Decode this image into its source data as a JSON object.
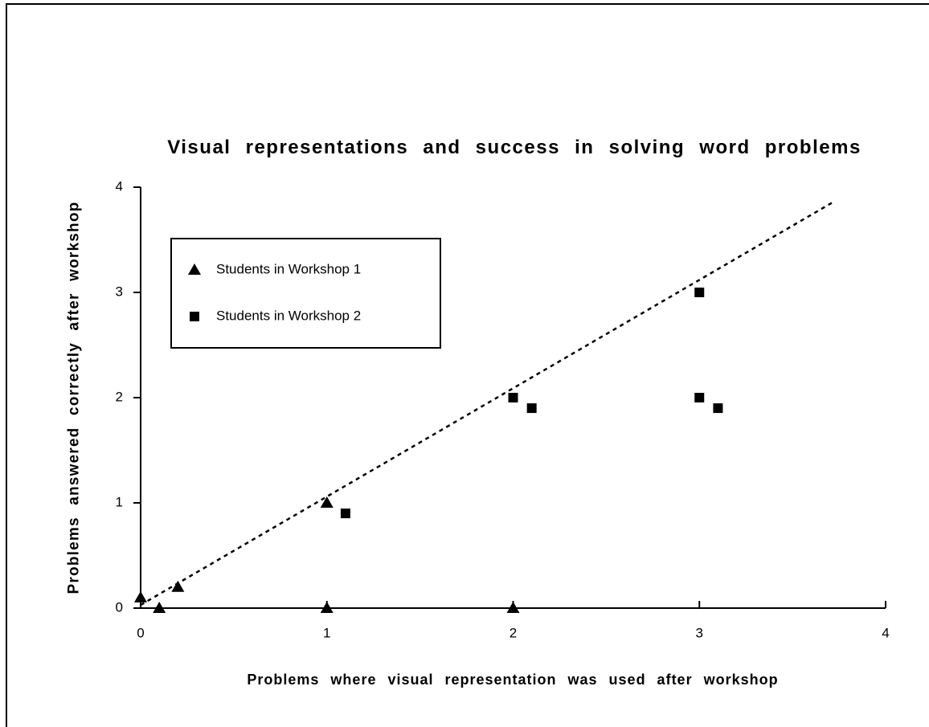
{
  "chart_data": {
    "type": "scatter",
    "title": "Visual representations and success in solving word problems",
    "x_label": "Problems where visual representation was used after workshop",
    "y_label": "Problems answered correctly after workshop",
    "xlim": [
      0,
      4
    ],
    "ylim": [
      0,
      4
    ],
    "xticks": [
      0,
      1,
      2,
      3,
      4
    ],
    "yticks": [
      0,
      1,
      2,
      3,
      4
    ],
    "legend": "upper left",
    "series": [
      {
        "name": "Students in Workshop 1",
        "marker": "triangle",
        "color": "#000000",
        "x": [
          0,
          0.1,
          0.2,
          1,
          1,
          2
        ],
        "values": [
          0.1,
          0,
          0.2,
          1,
          0,
          0
        ]
      },
      {
        "name": "Students in Workshop 2",
        "marker": "square",
        "color": "#000000",
        "x": [
          1.1,
          2,
          2.1,
          3,
          3,
          3.1
        ],
        "values": [
          0.9,
          2,
          1.9,
          3,
          2,
          1.9
        ]
      }
    ],
    "trend_line": {
      "x": [
        0,
        3.72
      ],
      "values": [
        0.03,
        3.86
      ],
      "style": "dashed"
    }
  }
}
